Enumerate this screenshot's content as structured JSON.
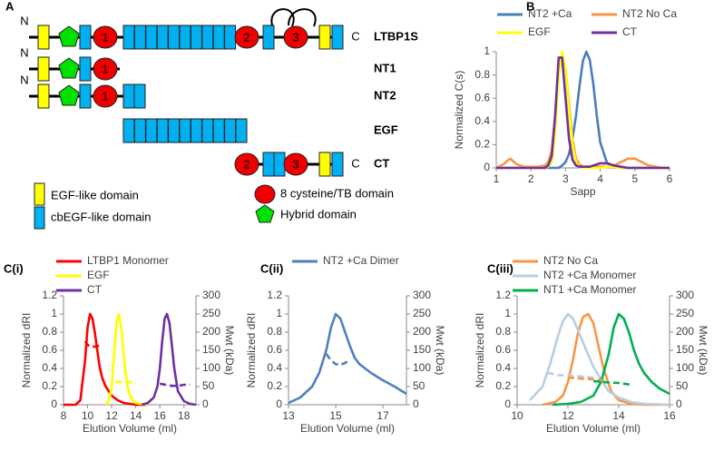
{
  "diagram": {
    "label": "A",
    "rows": [
      {
        "n": "N",
        "name": "LTBP1S",
        "c": "C",
        "domains": [
          "1",
          "2",
          "3"
        ]
      },
      {
        "n": "N",
        "name": "NT1",
        "domains": [
          "1"
        ]
      },
      {
        "n": "N",
        "name": "NT2",
        "domains": [
          "1"
        ]
      },
      {
        "name": "EGF"
      },
      {
        "name": "CT",
        "c": "C",
        "domains": [
          "2",
          "3"
        ]
      }
    ],
    "legend": [
      "EGF-like domain",
      "cbEGF-like domain",
      "8 cysteine/TB domain",
      "Hybrid domain"
    ]
  },
  "chart_data": [
    {
      "type": "line",
      "label": "B",
      "x_label": "Sapp",
      "y_label": "Normalized C(s)",
      "xlim": [
        1,
        6
      ],
      "xticks": [
        1,
        2,
        3,
        4,
        5,
        6
      ],
      "ylim": [
        0,
        1
      ],
      "yticks": [
        0,
        0.2,
        0.4,
        0.6,
        0.8,
        1
      ],
      "grid": false,
      "x": [
        1,
        1.2,
        1.4,
        1.6,
        1.8,
        2,
        2.2,
        2.4,
        2.5,
        2.6,
        2.7,
        2.8,
        2.9,
        3,
        3.1,
        3.2,
        3.3,
        3.4,
        3.5,
        3.6,
        3.7,
        3.8,
        3.9,
        4,
        4.2,
        4.4,
        4.6,
        4.8,
        5,
        5.2,
        5.4,
        5.6,
        5.8,
        6
      ],
      "series": [
        {
          "name": "NT2 +Ca",
          "color": "#4a7ebb",
          "values": [
            0,
            0,
            0,
            0,
            0,
            0,
            0,
            0,
            0,
            0,
            0,
            0,
            0.02,
            0.05,
            0.12,
            0.25,
            0.45,
            0.7,
            0.92,
            1,
            0.93,
            0.72,
            0.45,
            0.22,
            0.04,
            0.01,
            0,
            0,
            0,
            0,
            0,
            0,
            0,
            0
          ]
        },
        {
          "name": "NT2 No Ca",
          "color": "#f79646",
          "values": [
            0,
            0.03,
            0.08,
            0.03,
            0.01,
            0.01,
            0.01,
            0.02,
            0.05,
            0.15,
            0.45,
            0.85,
            0.95,
            0.85,
            0.55,
            0.25,
            0.08,
            0.03,
            0.01,
            0.01,
            0.01,
            0.01,
            0.01,
            0.01,
            0.01,
            0.02,
            0.05,
            0.08,
            0.08,
            0.05,
            0.02,
            0.01,
            0,
            0
          ]
        },
        {
          "name": "EGF",
          "color": "#ffff00",
          "values": [
            0,
            0,
            0,
            0,
            0,
            0,
            0,
            0,
            0.01,
            0.05,
            0.3,
            0.8,
            1,
            0.85,
            0.5,
            0.2,
            0.05,
            0.01,
            0,
            0,
            0,
            0,
            0,
            0,
            0.01,
            0.01,
            0,
            0,
            0,
            0,
            0,
            0,
            0,
            0
          ]
        },
        {
          "name": "CT",
          "color": "#7030a0",
          "values": [
            0,
            0,
            0,
            0,
            0,
            0,
            0,
            0,
            0.02,
            0.1,
            0.45,
            0.95,
            0.95,
            0.6,
            0.25,
            0.07,
            0.02,
            0.01,
            0.01,
            0.01,
            0.01,
            0.02,
            0.03,
            0.04,
            0.04,
            0.02,
            0.01,
            0,
            0,
            0,
            0,
            0,
            0,
            0
          ]
        }
      ]
    },
    {
      "type": "line",
      "label": "C(i)",
      "x_label": "Elution Volume (ml)",
      "y_label": "Normalized dRI",
      "y2_label": "Mwt (kDa)",
      "xlim": [
        8,
        19
      ],
      "xticks": [
        8,
        10,
        12,
        14,
        16,
        18
      ],
      "ylim": [
        0,
        1.2
      ],
      "yticks": [
        0,
        0.2,
        0.4,
        0.6,
        0.8,
        1,
        1.2
      ],
      "y2lim": [
        0,
        300
      ],
      "y2ticks": [
        0,
        50,
        100,
        150,
        200,
        250,
        300
      ],
      "grid": false,
      "series": [
        {
          "name": "LTBP1 Monomer",
          "color": "#ff0000",
          "x": [
            8,
            9,
            9.4,
            9.8,
            10,
            10.2,
            10.4,
            10.6,
            10.8,
            11,
            11.2,
            11.5,
            12,
            12.5,
            13,
            13.5,
            14,
            15
          ],
          "values": [
            0,
            0,
            0.05,
            0.5,
            0.85,
            1,
            0.95,
            0.8,
            0.6,
            0.42,
            0.3,
            0.2,
            0.1,
            0.05,
            0.02,
            0.01,
            0,
            0
          ]
        },
        {
          "name": "EGF",
          "color": "#ffff00",
          "x": [
            11.5,
            11.8,
            12,
            12.2,
            12.4,
            12.6,
            12.8,
            13,
            13.2,
            13.4,
            13.6,
            14,
            14.5,
            15
          ],
          "values": [
            0,
            0.05,
            0.2,
            0.55,
            0.9,
            1,
            0.85,
            0.55,
            0.3,
            0.15,
            0.07,
            0.02,
            0.01,
            0
          ]
        },
        {
          "name": "CT",
          "color": "#7030a0",
          "x": [
            14.5,
            15,
            15.5,
            15.8,
            16,
            16.2,
            16.4,
            16.6,
            16.8,
            17,
            17.2,
            17.5,
            18,
            18.5,
            19
          ],
          "values": [
            0,
            0.02,
            0.08,
            0.2,
            0.4,
            0.7,
            0.95,
            1,
            0.9,
            0.65,
            0.4,
            0.15,
            0.04,
            0.01,
            0
          ]
        },
        {
          "color": "#ff0000",
          "axis": "y2",
          "dash": true,
          "x": [
            9.8,
            10,
            10.3,
            10.6,
            11
          ],
          "values": [
            175,
            165,
            160,
            160,
            163
          ]
        },
        {
          "color": "#ffff00",
          "axis": "y2",
          "dash": true,
          "x": [
            12.3,
            12.6,
            13,
            13.5,
            14
          ],
          "values": [
            62,
            63,
            62,
            62,
            62
          ]
        },
        {
          "color": "#7030a0",
          "axis": "y2",
          "dash": true,
          "x": [
            16,
            16.5,
            17,
            17.5,
            18,
            18.5
          ],
          "values": [
            58,
            55,
            52,
            52,
            55,
            55
          ]
        }
      ]
    },
    {
      "type": "line",
      "label": "C(ii)",
      "x_label": "Elution Volume (ml)",
      "y_label": "Normalized dRI",
      "y2_label": "Mwt (kDa)",
      "xlim": [
        13,
        18
      ],
      "xticks": [
        13,
        15,
        17
      ],
      "ylim": [
        0,
        1.2
      ],
      "yticks": [
        0,
        0.2,
        0.4,
        0.6,
        0.8,
        1,
        1.2
      ],
      "y2lim": [
        0,
        300
      ],
      "y2ticks": [
        0,
        50,
        100,
        150,
        200,
        250,
        300
      ],
      "grid": false,
      "series": [
        {
          "name": "NT2 +Ca Dimer",
          "color": "#4f81bd",
          "x": [
            13,
            13.5,
            14,
            14.3,
            14.6,
            14.8,
            15,
            15.2,
            15.4,
            15.6,
            15.8,
            16,
            16.5,
            17,
            17.5,
            18
          ],
          "values": [
            0.02,
            0.08,
            0.2,
            0.35,
            0.6,
            0.85,
            1,
            0.95,
            0.8,
            0.65,
            0.52,
            0.45,
            0.35,
            0.27,
            0.2,
            0.12
          ]
        },
        {
          "color": "#4f81bd",
          "axis": "y2",
          "dash": true,
          "x": [
            14.6,
            14.8,
            15,
            15.2,
            15.4,
            15.6
          ],
          "values": [
            140,
            122,
            112,
            110,
            115,
            125
          ]
        }
      ]
    },
    {
      "type": "line",
      "label": "C(iii)",
      "x_label": "Elution Volume (ml)",
      "y_label": "Normalized dRI",
      "y2_label": "Mwt (kDa)",
      "xlim": [
        10,
        16
      ],
      "xticks": [
        10,
        12,
        14,
        16
      ],
      "ylim": [
        0,
        1.2
      ],
      "yticks": [
        0,
        0.2,
        0.4,
        0.6,
        0.8,
        1,
        1.2
      ],
      "y2lim": [
        0,
        300
      ],
      "y2ticks": [
        0,
        50,
        100,
        150,
        200,
        250,
        300
      ],
      "grid": false,
      "series": [
        {
          "name": "NT2 No Ca",
          "color": "#f79646",
          "x": [
            11,
            11.5,
            11.8,
            12,
            12.2,
            12.4,
            12.6,
            12.8,
            13,
            13.2,
            13.4,
            13.7,
            14,
            14.5,
            15,
            16
          ],
          "values": [
            0,
            0.03,
            0.1,
            0.25,
            0.5,
            0.8,
            0.97,
            1,
            0.9,
            0.65,
            0.4,
            0.15,
            0.05,
            0.01,
            0,
            0
          ]
        },
        {
          "name": "NT2 +Ca Monomer",
          "color": "#b9cde5",
          "x": [
            10.5,
            11,
            11.3,
            11.6,
            11.8,
            12,
            12.2,
            12.4,
            12.6,
            12.8,
            13,
            13.3,
            13.6,
            14,
            14.5,
            15,
            16
          ],
          "values": [
            0.05,
            0.2,
            0.45,
            0.75,
            0.92,
            1,
            0.95,
            0.82,
            0.68,
            0.55,
            0.42,
            0.28,
            0.15,
            0.08,
            0.03,
            0.01,
            0
          ]
        },
        {
          "name": "NT1 +Ca Monomer",
          "color": "#00b050",
          "x": [
            11.4,
            12,
            12.5,
            13,
            13.3,
            13.6,
            13.8,
            14,
            14.2,
            14.4,
            14.6,
            14.8,
            15,
            15.3,
            15.6,
            16
          ],
          "values": [
            0,
            0.01,
            0.03,
            0.1,
            0.25,
            0.55,
            0.85,
            1,
            0.95,
            0.8,
            0.6,
            0.45,
            0.35,
            0.25,
            0.18,
            0.12
          ]
        },
        {
          "color": "#b9cde5",
          "axis": "y2",
          "dash": true,
          "x": [
            11.2,
            11.6,
            12,
            12.5,
            13
          ],
          "values": [
            88,
            82,
            80,
            78,
            75
          ]
        },
        {
          "color": "#f79646",
          "axis": "y2",
          "dash": true,
          "x": [
            12,
            12.5,
            13,
            13.5
          ],
          "values": [
            75,
            72,
            70,
            67
          ]
        },
        {
          "color": "#00b050",
          "axis": "y2",
          "dash": true,
          "x": [
            13,
            13.5,
            14,
            14.5
          ],
          "values": [
            65,
            62,
            60,
            55
          ]
        }
      ]
    }
  ]
}
